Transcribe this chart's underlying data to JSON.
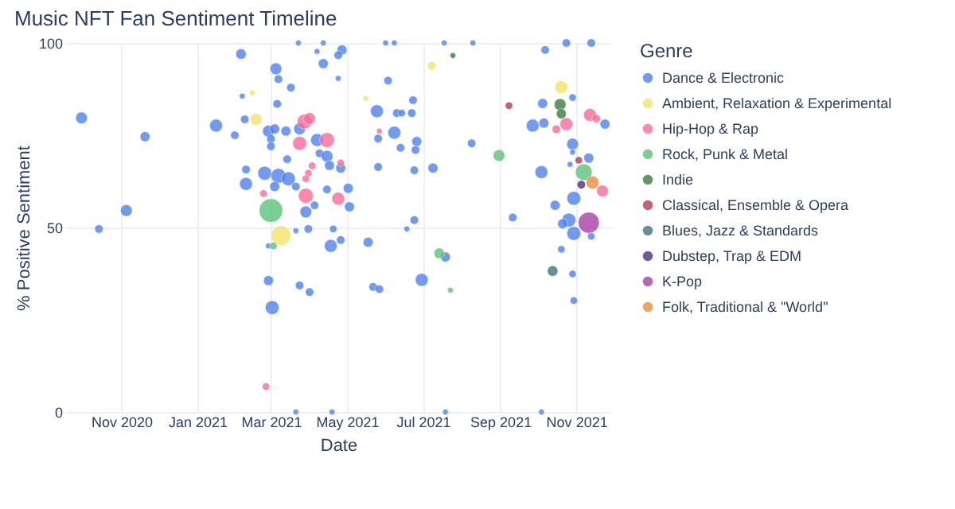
{
  "chart_data": {
    "type": "bubble",
    "title": "Music NFT Fan Sentiment Timeline",
    "xlabel": "Date",
    "ylabel": "% Positive Sentiment",
    "legend_title": "Genre",
    "xlim": [
      "2020-09-17",
      "2021-11-29"
    ],
    "ylim": [
      0,
      100
    ],
    "yticks": [
      0,
      50,
      100
    ],
    "xticks": [
      {
        "value": "2020-11-01",
        "label": "Nov 2020"
      },
      {
        "value": "2021-01-01",
        "label": "Jan 2021"
      },
      {
        "value": "2021-03-01",
        "label": "Mar 2021"
      },
      {
        "value": "2021-05-01",
        "label": "May 2021"
      },
      {
        "value": "2021-07-01",
        "label": "Jul 2021"
      },
      {
        "value": "2021-09-01",
        "label": "Sep 2021"
      },
      {
        "value": "2021-11-01",
        "label": "Nov 2021"
      }
    ],
    "grid": true,
    "legend": "right",
    "marker": "circle",
    "series": [
      {
        "name": "Dance & Electronic",
        "color": "#4f82ee",
        "x": [
          "2020-09-30",
          "2020-10-14",
          "2020-11-05",
          "2020-11-20",
          "2021-01-16",
          "2021-02-05",
          "2021-01-31",
          "2021-02-06",
          "2021-02-08",
          "2021-02-09",
          "2021-02-09",
          "2021-03-05",
          "2021-03-07",
          "2021-03-17",
          "2021-03-06",
          "2021-03-23",
          "2021-04-07",
          "2021-04-12",
          "2021-04-27",
          "2021-04-24",
          "2021-04-12",
          "2021-04-24",
          "2021-02-27",
          "2021-03-04",
          "2021-03-13",
          "2021-03-24",
          "2021-03-01",
          "2021-03-01",
          "2021-04-07",
          "2021-04-09",
          "2021-04-15",
          "2021-04-17",
          "2021-04-26",
          "2021-03-14",
          "2021-02-24",
          "2021-03-07",
          "2021-03-15",
          "2021-03-04",
          "2021-03-21",
          "2021-04-15",
          "2021-05-02",
          "2021-04-05",
          "2021-05-03",
          "2021-03-29",
          "2021-03-31",
          "2021-03-21",
          "2021-02-27",
          "2021-04-18",
          "2021-04-20",
          "2021-04-26",
          "2021-05-18",
          "2021-02-27",
          "2021-03-24",
          "2021-04-01",
          "2021-03-02",
          "2021-05-22",
          "2021-05-27",
          "2021-05-25",
          "2021-05-26",
          "2021-05-26",
          "2021-06-03",
          "2021-06-08",
          "2021-03-21",
          "2021-04-19",
          "2021-06-01",
          "2021-06-08",
          "2021-07-18",
          "2021-08-10",
          "2021-10-24",
          "2021-11-13",
          "2021-10-07",
          "2021-06-23",
          "2021-06-10",
          "2021-06-14",
          "2021-06-22",
          "2021-06-26",
          "2021-06-13",
          "2021-06-25",
          "2021-06-24",
          "2021-07-09",
          "2021-08-09",
          "2021-06-24",
          "2021-06-18",
          "2021-07-19",
          "2021-06-30",
          "2021-09-11",
          "2021-07-19",
          "2021-10-04",
          "2021-10-05",
          "2021-10-29",
          "2021-09-27",
          "2021-10-06",
          "2021-11-24",
          "2021-10-29",
          "2021-10-29",
          "2021-11-11",
          "2021-10-04",
          "2021-10-27",
          "2021-10-15",
          "2021-10-30",
          "2021-10-26",
          "2021-10-21",
          "2021-10-30",
          "2021-11-13",
          "2021-10-20",
          "2021-10-29",
          "2021-10-30"
        ],
        "values": [
          79.7,
          49.6,
          54.6,
          74.6,
          77.6,
          97,
          75,
          85.6,
          79.3,
          65.7,
          61.8,
          93,
          90.2,
          87.9,
          83.5,
          100,
          97.7,
          100,
          98.1,
          96.7,
          94.4,
          90.4,
          76.1,
          76.7,
          76.1,
          76.7,
          74,
          72,
          73.7,
          70.1,
          69.3,
          66.8,
          66.1,
          68.5,
          64.7,
          64,
          63.2,
          61.1,
          61.1,
          60.3,
          60.6,
          56,
          55.6,
          54.2,
          49.6,
          49.1,
          45,
          45,
          49.6,
          46.6,
          46,
          35.6,
          34.3,
          32.5,
          28.3,
          33.9,
          33.3,
          81.5,
          74.1,
          66.4,
          89.8,
          75.7,
          0,
          0,
          100,
          100,
          100,
          100,
          100,
          100,
          98.1,
          84.5,
          81,
          81,
          81,
          73.3,
          71.6,
          71,
          65.5,
          66.1,
          72.8,
          52,
          49.6,
          42,
          35.8,
          52.7,
          0,
          0,
          83.6,
          85.2,
          77.6,
          78.3,
          78,
          72.6,
          70.4,
          68.8,
          65,
          67.1,
          56,
          57.9,
          52,
          51,
          48.4,
          47.6,
          44.1,
          37.4,
          30.2
        ],
        "sizes": [
          0.25,
          0.13,
          0.25,
          0.18,
          0.3,
          0.2,
          0.13,
          0.06,
          0.13,
          0.13,
          0.3,
          0.25,
          0.13,
          0.13,
          0.13,
          0.06,
          0.06,
          0.06,
          0.18,
          0.13,
          0.18,
          0.06,
          0.25,
          0.18,
          0.18,
          0.25,
          0.13,
          0.13,
          0.3,
          0.13,
          0.25,
          0.18,
          0.18,
          0.13,
          0.35,
          0.4,
          0.35,
          0.18,
          0.13,
          0.13,
          0.18,
          0.13,
          0.18,
          0.25,
          0.13,
          0.06,
          0.06,
          0.3,
          0.1,
          0.13,
          0.18,
          0.18,
          0.13,
          0.13,
          0.35,
          0.13,
          0.13,
          0.3,
          0.13,
          0.13,
          0.13,
          0.3,
          0.06,
          0.06,
          0.06,
          0.06,
          0.06,
          0.06,
          0.13,
          0.13,
          0.13,
          0.13,
          0.13,
          0.1,
          0.13,
          0.18,
          0.13,
          0.13,
          0.13,
          0.18,
          0.13,
          0.13,
          0.06,
          0.18,
          0.3,
          0.13,
          0.06,
          0.06,
          0.18,
          0.1,
          0.3,
          0.18,
          0.18,
          0.25,
          0.06,
          0.18,
          0.3,
          0.06,
          0.18,
          0.35,
          0.35,
          0.18,
          0.35,
          0.1,
          0.1,
          0.1,
          0.1
        ]
      },
      {
        "name": "Ambient, Relaxation & Experimental",
        "color": "#f3e36a",
        "x": [
          "2021-02-14",
          "2021-02-17",
          "2021-03-09",
          "2021-05-16",
          "2021-07-08",
          "2021-10-20"
        ],
        "values": [
          86.5,
          79.3,
          47.8,
          85,
          93.8,
          88
        ],
        "sizes": [
          0.06,
          0.25,
          0.7,
          0.06,
          0.13,
          0.3
        ]
      },
      {
        "name": "Hip-Hop & Rap",
        "color": "#f86c9a",
        "x": [
          "2021-02-23",
          "2021-02-25",
          "2021-03-28",
          "2021-04-01",
          "2021-03-24",
          "2021-04-15",
          "2021-04-26",
          "2021-04-03",
          "2021-03-31",
          "2021-03-29",
          "2021-03-29",
          "2021-04-24",
          "2021-05-27",
          "2021-10-24",
          "2021-10-16",
          "2021-11-12",
          "2021-11-17",
          "2021-11-22"
        ],
        "values": [
          59.2,
          6.9,
          78.7,
          79.5,
          72.8,
          73.7,
          67.5,
          66.7,
          64.7,
          63.2,
          58.6,
          57.8,
          76.1,
          78,
          76.6,
          80.5,
          79.5,
          59.9
        ],
        "sizes": [
          0.1,
          0.1,
          0.4,
          0.25,
          0.35,
          0.4,
          0.1,
          0.1,
          0.1,
          0.1,
          0.4,
          0.3,
          0.06,
          0.3,
          0.13,
          0.3,
          0.13,
          0.25
        ]
      },
      {
        "name": "Rock, Punk & Metal",
        "color": "#5cc279",
        "x": [
          "2021-03-01",
          "2021-03-03",
          "2021-08-31",
          "2021-07-14",
          "2021-07-23",
          "2021-11-07"
        ],
        "values": [
          54.6,
          45,
          69.5,
          43,
          33,
          65
        ],
        "sizes": [
          1,
          0.1,
          0.25,
          0.2,
          0.06,
          0.5
        ]
      },
      {
        "name": "Indie",
        "color": "#3b7d3c",
        "x": [
          "2021-07-25",
          "2021-10-19",
          "2021-10-20"
        ],
        "values": [
          96.6,
          83.3,
          80.8
        ],
        "sizes": [
          0.06,
          0.25,
          0.18
        ]
      },
      {
        "name": "Classical, Ensemble & Opera",
        "color": "#b83c56",
        "x": [
          "2021-09-08",
          "2021-11-03"
        ],
        "values": [
          83,
          68.2
        ],
        "sizes": [
          0.1,
          0.1
        ]
      },
      {
        "name": "Blues, Jazz & Standards",
        "color": "#3d7582",
        "x": [
          "2021-10-13"
        ],
        "values": [
          38.2
        ],
        "sizes": [
          0.2
        ]
      },
      {
        "name": "Dubstep, Trap & EDM",
        "color": "#52307f",
        "x": [
          "2021-11-05"
        ],
        "values": [
          61.6
        ],
        "sizes": [
          0.13
        ]
      },
      {
        "name": "K-Pop",
        "color": "#a93fa6",
        "x": [
          "2021-11-11"
        ],
        "values": [
          51.3
        ],
        "sizes": [
          0.8
        ]
      },
      {
        "name": "Folk, Traditional & \"World\"",
        "color": "#f28a3c",
        "x": [
          "2021-11-14"
        ],
        "values": [
          62.2
        ],
        "sizes": [
          0.3
        ]
      }
    ]
  }
}
